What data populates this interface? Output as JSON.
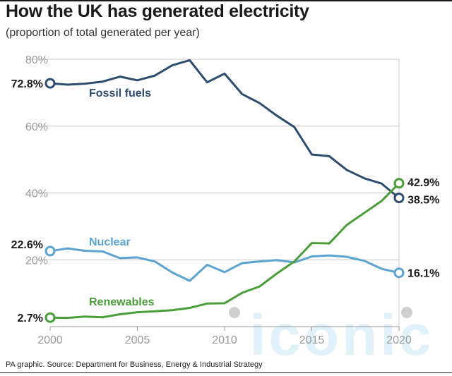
{
  "header": {
    "title": "How the UK has generated electricity",
    "subtitle": "(proportion of total generated per year)"
  },
  "footer": {
    "source": "PA graphic. Source: Department for Business, Energy & Industrial Strategy"
  },
  "watermark": {
    "text": "iconic"
  },
  "colors": {
    "fossil": "#2e4c6d",
    "nuclear": "#5ba3d0",
    "renewables": "#4a9e3a",
    "grid": "#c8c8c8",
    "axis": "#9a9a9a"
  },
  "chart_data": {
    "type": "line",
    "title": "How the UK has generated electricity",
    "subtitle": "(proportion of total generated per year)",
    "xlabel": "",
    "ylabel": "",
    "xlim": [
      2000,
      2020
    ],
    "ylim": [
      0,
      80
    ],
    "x_ticks": [
      2000,
      2005,
      2010,
      2015,
      2020
    ],
    "y_ticks": [
      20,
      40,
      60,
      80
    ],
    "x_tick_labels": [
      "2000",
      "2005",
      "2010",
      "2015",
      "2020"
    ],
    "y_tick_labels": [
      "20%",
      "40%",
      "60%",
      "80%"
    ],
    "grid": "horizontal",
    "x": [
      2000,
      2001,
      2002,
      2003,
      2004,
      2005,
      2006,
      2007,
      2008,
      2009,
      2010,
      2011,
      2012,
      2013,
      2014,
      2015,
      2016,
      2017,
      2018,
      2019,
      2020
    ],
    "series": [
      {
        "name": "Fossil fuels",
        "color": "#2e4c6d",
        "values": [
          72.8,
          72.4,
          72.7,
          73.3,
          74.8,
          73.7,
          75.1,
          78.2,
          79.7,
          73.1,
          75.7,
          69.6,
          66.9,
          63.1,
          59.7,
          51.5,
          51.0,
          46.9,
          44.4,
          42.8,
          38.5
        ],
        "start_label": "72.8%",
        "end_label": "38.5%"
      },
      {
        "name": "Nuclear",
        "color": "#5ba3d0",
        "values": [
          22.6,
          23.4,
          22.7,
          22.5,
          20.5,
          20.7,
          19.5,
          16.2,
          13.7,
          18.5,
          16.3,
          19.0,
          19.5,
          19.9,
          19.2,
          21.0,
          21.3,
          20.9,
          19.7,
          17.3,
          16.1
        ],
        "start_label": "22.6%",
        "end_label": "16.1%"
      },
      {
        "name": "Renewables",
        "color": "#4a9e3a",
        "values": [
          2.7,
          2.6,
          3.0,
          2.8,
          3.7,
          4.3,
          4.6,
          4.9,
          5.6,
          6.9,
          7.0,
          10.1,
          12.0,
          15.9,
          19.5,
          25.0,
          24.9,
          30.4,
          34.0,
          37.6,
          42.9
        ],
        "start_label": "2.7%",
        "end_label": "42.9%"
      }
    ]
  }
}
